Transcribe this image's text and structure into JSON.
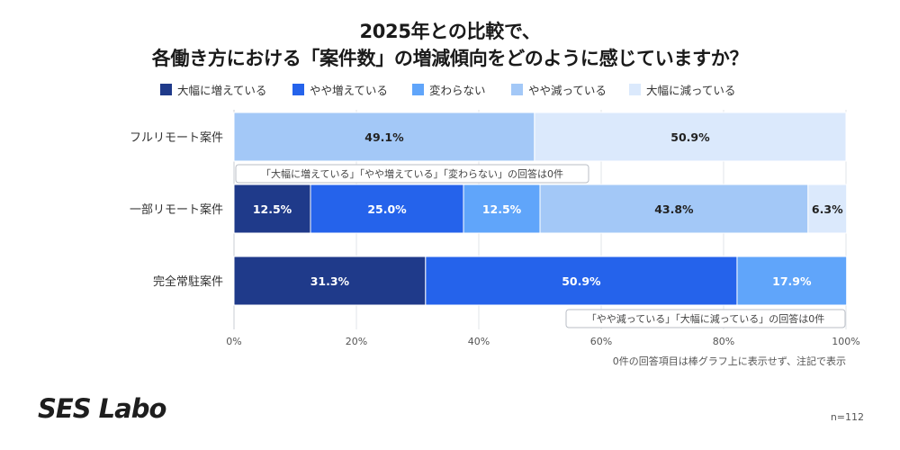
{
  "title_line1": "2025年との比較で、",
  "title_line2": "各働き方における「案件数」の増減傾向をどのように感じていますか？",
  "footnote": "0件の回答項目は棒グラフ上に表示せず、注記で表示",
  "logo": "SES Labo",
  "sample_size": "n=112",
  "colors": {
    "大幅に増えている": "#1f3a8a",
    "やや増えている": "#2563eb",
    "変わらない": "#60a5fa",
    "やや減っている": "#a3c8f7",
    "大幅に減っている": "#dbe9fc",
    "row_band": "#f3f4f6",
    "grid": "#e2e5ea"
  },
  "chart_data": {
    "type": "bar",
    "orientation": "horizontal",
    "stacked": "percent",
    "categories": [
      "フルリモート案件",
      "一部リモート案件",
      "完全常駐案件"
    ],
    "series": [
      {
        "name": "大幅に増えている",
        "values": [
          0,
          12.5,
          31.3
        ]
      },
      {
        "name": "やや増えている",
        "values": [
          0,
          25.0,
          50.9
        ]
      },
      {
        "name": "変わらない",
        "values": [
          0,
          12.5,
          17.9
        ]
      },
      {
        "name": "やや減っている",
        "values": [
          49.1,
          43.8,
          0
        ]
      },
      {
        "name": "大幅に減っている",
        "values": [
          50.9,
          6.3,
          0
        ]
      }
    ],
    "xlim": [
      0,
      100
    ],
    "xticks": [
      "0%",
      "20%",
      "40%",
      "60%",
      "80%",
      "100%"
    ],
    "legend_position": "top",
    "notes": [
      {
        "category": "フルリモート案件",
        "text": "「大幅に増えている」「やや増えている」「変わらない」の回答は0件"
      },
      {
        "category": "完全常駐案件",
        "text": "「やや減っている」「大幅に減っている」の回答は0件"
      }
    ]
  }
}
